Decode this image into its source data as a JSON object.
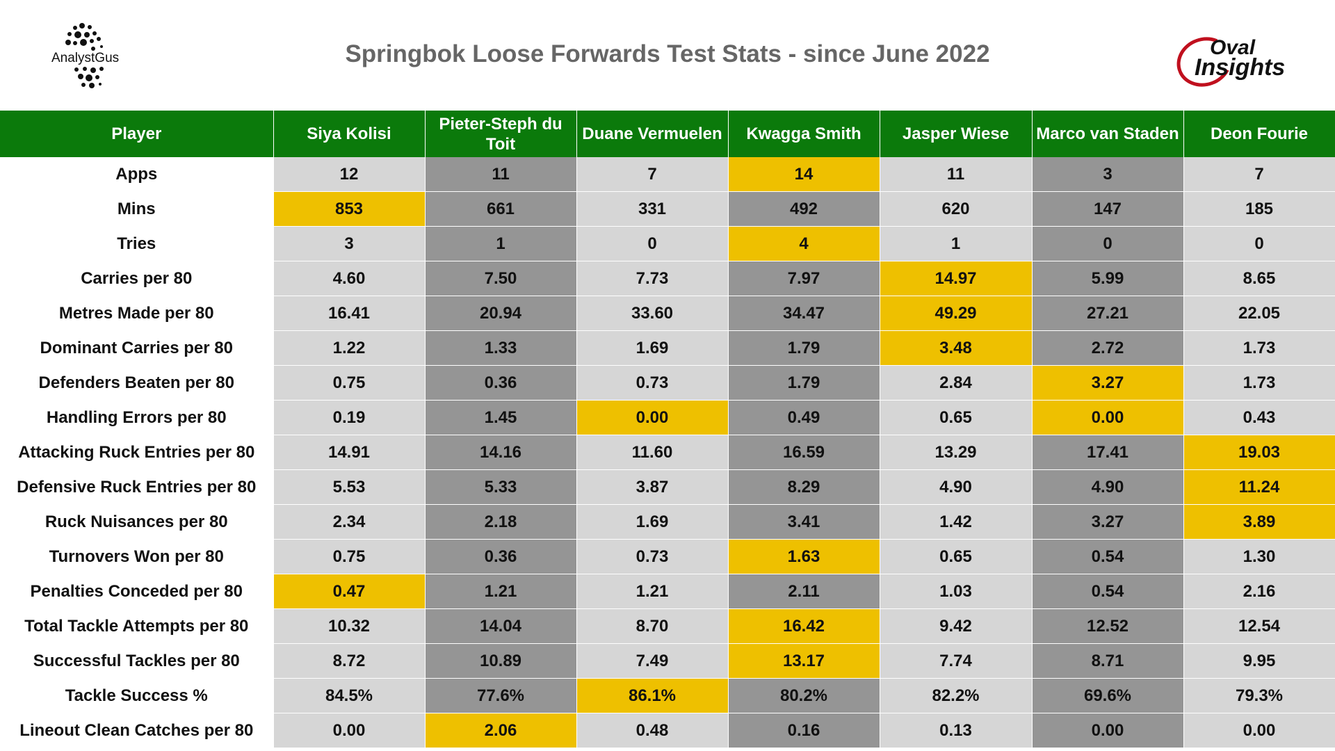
{
  "title": "Springbok Loose Forwards Test Stats - since June 2022",
  "logos": {
    "left": "AnalystGus",
    "right_line1": "Oval",
    "right_line2": "Insights"
  },
  "colors": {
    "header_green": "#0b7a0b",
    "highlight": "#eec000",
    "light_col": "#d6d6d6",
    "dark_col": "#959595"
  },
  "chart_data": {
    "type": "table",
    "title": "Springbok Loose Forwards Test Stats - since June 2022",
    "columns": [
      "Player",
      "Siya Kolisi",
      "Pieter-Steph du Toit",
      "Duane Vermuelen",
      "Kwagga Smith",
      "Jasper Wiese",
      "Marco van Staden",
      "Deon Fourie"
    ],
    "rows": [
      {
        "label": "Apps",
        "values": [
          "12",
          "11",
          "7",
          "14",
          "11",
          "3",
          "7"
        ],
        "highlight": [
          3
        ]
      },
      {
        "label": "Mins",
        "values": [
          "853",
          "661",
          "331",
          "492",
          "620",
          "147",
          "185"
        ],
        "highlight": [
          0
        ]
      },
      {
        "label": "Tries",
        "values": [
          "3",
          "1",
          "0",
          "4",
          "1",
          "0",
          "0"
        ],
        "highlight": [
          3
        ]
      },
      {
        "label": "Carries per 80",
        "values": [
          "4.60",
          "7.50",
          "7.73",
          "7.97",
          "14.97",
          "5.99",
          "8.65"
        ],
        "highlight": [
          4
        ]
      },
      {
        "label": "Metres Made per 80",
        "values": [
          "16.41",
          "20.94",
          "33.60",
          "34.47",
          "49.29",
          "27.21",
          "22.05"
        ],
        "highlight": [
          4
        ]
      },
      {
        "label": "Dominant Carries per 80",
        "values": [
          "1.22",
          "1.33",
          "1.69",
          "1.79",
          "3.48",
          "2.72",
          "1.73"
        ],
        "highlight": [
          4
        ]
      },
      {
        "label": "Defenders Beaten per 80",
        "values": [
          "0.75",
          "0.36",
          "0.73",
          "1.79",
          "2.84",
          "3.27",
          "1.73"
        ],
        "highlight": [
          5
        ]
      },
      {
        "label": "Handling Errors per 80",
        "values": [
          "0.19",
          "1.45",
          "0.00",
          "0.49",
          "0.65",
          "0.00",
          "0.43"
        ],
        "highlight": [
          2,
          5
        ]
      },
      {
        "label": "Attacking Ruck Entries per 80",
        "values": [
          "14.91",
          "14.16",
          "11.60",
          "16.59",
          "13.29",
          "17.41",
          "19.03"
        ],
        "highlight": [
          6
        ]
      },
      {
        "label": "Defensive Ruck Entries per 80",
        "values": [
          "5.53",
          "5.33",
          "3.87",
          "8.29",
          "4.90",
          "4.90",
          "11.24"
        ],
        "highlight": [
          6
        ]
      },
      {
        "label": "Ruck Nuisances per 80",
        "values": [
          "2.34",
          "2.18",
          "1.69",
          "3.41",
          "1.42",
          "3.27",
          "3.89"
        ],
        "highlight": [
          6
        ]
      },
      {
        "label": "Turnovers Won per 80",
        "values": [
          "0.75",
          "0.36",
          "0.73",
          "1.63",
          "0.65",
          "0.54",
          "1.30"
        ],
        "highlight": [
          3
        ]
      },
      {
        "label": "Penalties Conceded per 80",
        "values": [
          "0.47",
          "1.21",
          "1.21",
          "2.11",
          "1.03",
          "0.54",
          "2.16"
        ],
        "highlight": [
          0
        ]
      },
      {
        "label": "Total Tackle Attempts per 80",
        "values": [
          "10.32",
          "14.04",
          "8.70",
          "16.42",
          "9.42",
          "12.52",
          "12.54"
        ],
        "highlight": [
          3
        ]
      },
      {
        "label": "Successful Tackles per 80",
        "values": [
          "8.72",
          "10.89",
          "7.49",
          "13.17",
          "7.74",
          "8.71",
          "9.95"
        ],
        "highlight": [
          3
        ]
      },
      {
        "label": "Tackle Success %",
        "values": [
          "84.5%",
          "77.6%",
          "86.1%",
          "80.2%",
          "82.2%",
          "69.6%",
          "79.3%"
        ],
        "highlight": [
          2
        ]
      },
      {
        "label": "Lineout Clean Catches per 80",
        "values": [
          "0.00",
          "2.06",
          "0.48",
          "0.16",
          "0.13",
          "0.00",
          "0.00"
        ],
        "highlight": [
          1
        ]
      }
    ]
  }
}
